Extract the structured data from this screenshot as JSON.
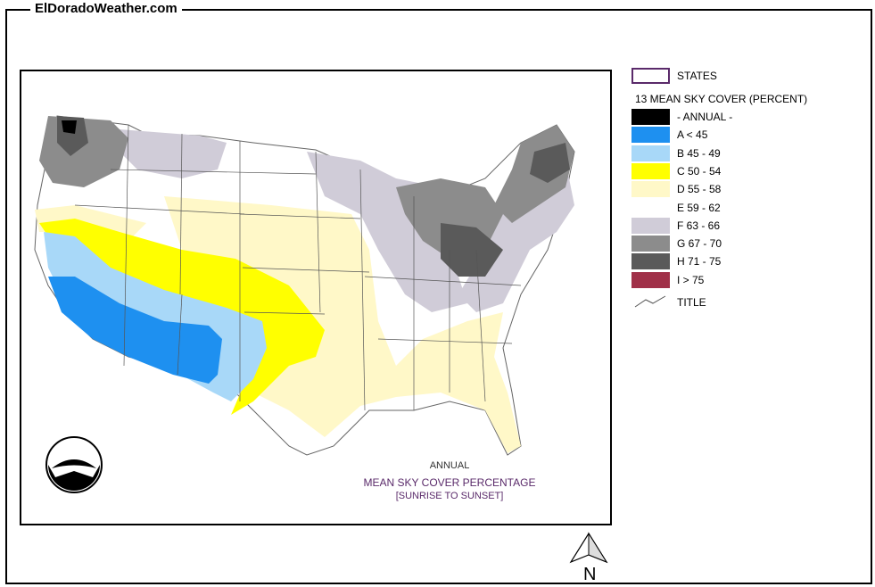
{
  "header": {
    "site_title": "ElDoradoWeather.com"
  },
  "map": {
    "caption_line1": "ANNUAL",
    "caption_line2": "MEAN SKY COVER PERCENTAGE",
    "caption_line3": "[SUNRISE TO SUNSET]",
    "logo_text": "NOAA"
  },
  "legend": {
    "states_label": "STATES",
    "group_title": "13 MEAN SKY COVER (PERCENT)",
    "items": [
      {
        "label": "- ANNUAL -",
        "color": "#000000"
      },
      {
        "label": "A < 45",
        "color": "#1e90f0"
      },
      {
        "label": "B 45 - 49",
        "color": "#a8d8f8"
      },
      {
        "label": "C 50 - 54",
        "color": "#ffff00"
      },
      {
        "label": "D 55 - 58",
        "color": "#fff8c8"
      },
      {
        "label": "E 59 - 62",
        "color": "#ffffff"
      },
      {
        "label": "F 63 - 66",
        "color": "#d0ccd8"
      },
      {
        "label": "G 67 - 70",
        "color": "#8c8c8c"
      },
      {
        "label": "H 71 - 75",
        "color": "#5a5a5a"
      },
      {
        "label": "I > 75",
        "color": "#a03048"
      }
    ],
    "title_label": "TITLE"
  },
  "compass": {
    "label": "N"
  }
}
